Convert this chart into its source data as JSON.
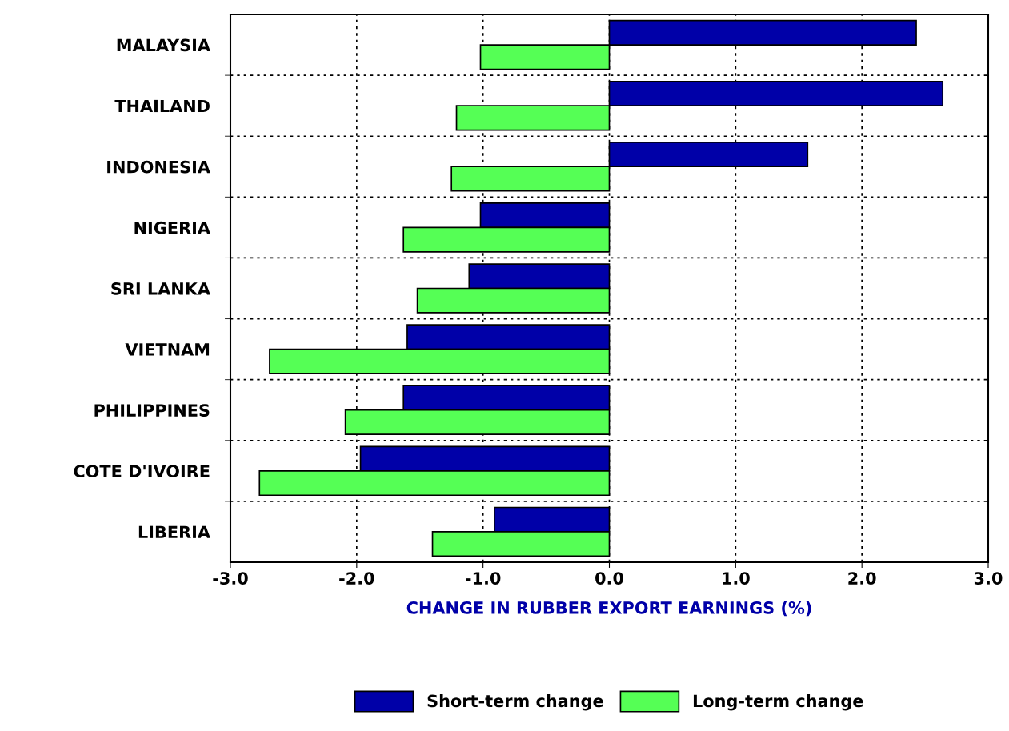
{
  "chart_data": {
    "type": "bar",
    "orientation": "horizontal",
    "categories": [
      "MALAYSIA",
      "THAILAND",
      "INDONESIA",
      "NIGERIA",
      "SRI LANKA",
      "VIETNAM",
      "PHILIPPINES",
      "COTE D'IVOIRE",
      "LIBERIA"
    ],
    "series": [
      {
        "name": "Short-term change",
        "color": "#0000a8",
        "values": [
          2.43,
          2.64,
          1.57,
          -1.02,
          -1.11,
          -1.6,
          -1.63,
          -1.97,
          -0.91
        ]
      },
      {
        "name": "Long-term change",
        "color": "#55ff55",
        "values": [
          -1.02,
          -1.21,
          -1.25,
          -1.63,
          -1.52,
          -2.69,
          -2.09,
          -2.77,
          -1.4
        ]
      }
    ],
    "xlabel": "CHANGE IN RUBBER EXPORT EARNINGS (%)",
    "xlim": [
      -3.0,
      3.0
    ],
    "xticks": [
      {
        "value": -3.0,
        "label": "-3.0"
      },
      {
        "value": -2.0,
        "label": "-2.0"
      },
      {
        "value": -1.0,
        "label": "-1.0"
      },
      {
        "value": 0.0,
        "label": "0.0"
      },
      {
        "value": 1.0,
        "label": "1.0"
      },
      {
        "value": 2.0,
        "label": "2.0"
      },
      {
        "value": 3.0,
        "label": "3.0"
      }
    ],
    "grid": true,
    "legend": "bottom"
  }
}
